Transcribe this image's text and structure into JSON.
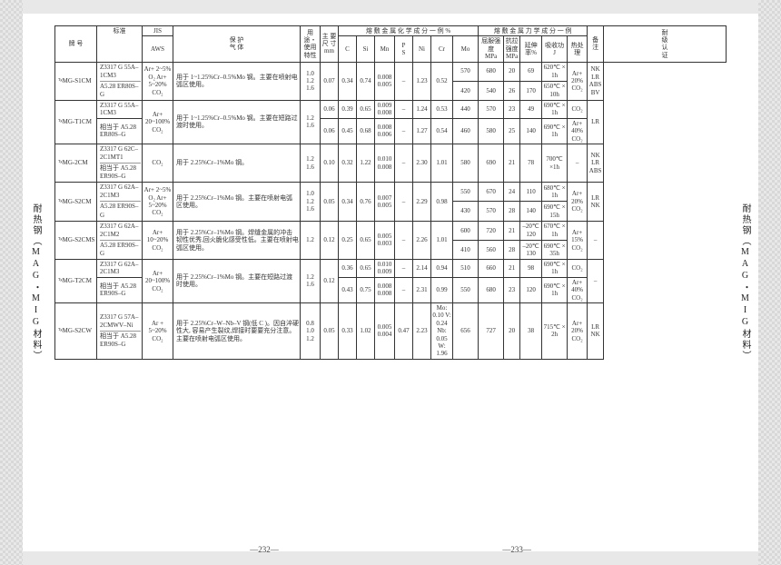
{
  "sideLabel": "耐热钢（MAG・MIG材料）",
  "footerLeft": "—232—",
  "footerRight": "—233—",
  "header": {
    "brand": "牌 号",
    "std": "标准",
    "jis": "JIS",
    "aws": "AWS",
    "shield": "保 护\n气 体",
    "usage": "用 途・使用特性",
    "dim": "主 要\n尺 寸\nmm",
    "chemGroup": "熔 敷 金 属 化 学 成 分 一 例  %",
    "mechGroup": "熔 敷 金 属 力 学 成 分 一 例",
    "c": "C",
    "si": "Si",
    "mn": "Mn",
    "ps": "P\nS",
    "ni": "Ni",
    "cr": "Cr",
    "mo": "Mo",
    "ys": "屈服强度\nMPa",
    "ts": "抗拉强度\nMPa",
    "el": "延伸\n率%",
    "im": "吸收功\nJ",
    "ht": "热处理",
    "note": "备 注",
    "ship": "耐\n级\n认\n证"
  },
  "rows": [
    {
      "brand": "ᵀᵍMG-S1CM",
      "jis": "Z3317\nG 55A–1CM3",
      "aws": "A5.28\nER80S–G",
      "shield": "Ar+\n2~5%\nO₂\nAr+\n5~20%\nCO₂",
      "usage": "用于 1~1.25%Cr–0.5%Mo 钢。主要在喷射电弧区使用。",
      "dim": "1.0\n1.2\n1.6",
      "chem": {
        "c": "0.07",
        "si": "0.34",
        "mn": "0.74",
        "ps": "0.008\n0.005",
        "ni": "–",
        "cr": "1.23",
        "mo": "0.52"
      },
      "mech": [
        {
          "ys": "570",
          "ts": "680",
          "el": "20",
          "im": "69",
          "ht": "620℃\n× 1h"
        },
        {
          "ys": "420",
          "ts": "540",
          "el": "26",
          "im": "170",
          "ht": "650℃\n× 10h"
        }
      ],
      "note": "Ar+\n20%\nCO₂",
      "ship": "NK\nLR\nABS\nBV"
    },
    {
      "brand": "ᵀᵍMG-T1CM",
      "jis1": "Z3317\nG 55A–1CM3",
      "aws1": "相当于\nA5.28\nER80S–G",
      "shield": "Ar+\n20~100%\nCO₂",
      "usage": "用于 1~1.25%Cr–0.5%Mo 钢。主要在短路过渡时使用。",
      "dim": "1.2\n1.6",
      "sub": [
        {
          "c": "0.06",
          "si": "0.39",
          "mn": "0.65",
          "ps": "0.009\n0.008",
          "ni": "–",
          "cr": "1.24",
          "mo": "0.53",
          "ys": "440",
          "ts": "570",
          "el": "23",
          "im": "49",
          "ht": "690℃\n× 1h",
          "note": "CO₂"
        },
        {
          "c": "0.06",
          "si": "0.45",
          "mn": "0.68",
          "ps": "0.008\n0.006",
          "ni": "–",
          "cr": "1.27",
          "mo": "0.54",
          "ys": "460",
          "ts": "580",
          "el": "25",
          "im": "140",
          "ht": "690℃\n× 1h",
          "note": "Ar+\n40%\nCO₂"
        }
      ],
      "ship": "LR"
    },
    {
      "brand": "ᵀᵍMG-2CM",
      "jis": "Z3317\nG 62C–2C1MT1",
      "aws": "相当于\nA5.28\nER90S–G",
      "shield": "CO₂",
      "usage": "用于 2.25%Cr–1%Mo 钢。",
      "dim": "1.2\n1.6",
      "chem": {
        "c": "0.10",
        "si": "0.32",
        "mn": "1.22",
        "ps": "0.010\n0.008",
        "ni": "–",
        "cr": "2.30",
        "mo": "1.01"
      },
      "mech": [
        {
          "ys": "580",
          "ts": "690",
          "el": "21",
          "im": "78",
          "ht": "700℃\n×1h"
        }
      ],
      "note": "–",
      "ship": "NK\nLR\nABS"
    },
    {
      "brand": "ᵀᵍMG-S2CM",
      "jis": "Z3317\nG 62A–2C1M3",
      "aws": "A5.28\nER90S–G",
      "shield": "Ar+\n2~5%\nO₂\nAr+\n5~20%\nCO₂",
      "usage": "用于 2.25%Cr–1%Mo 钢。主要在喷射电弧区使用。",
      "dim": "1.0\n1.2\n1.6",
      "chem": {
        "c": "0.05",
        "si": "0.34",
        "mn": "0.76",
        "ps": "0.007\n0.005",
        "ni": "–",
        "cr": "2.29",
        "mo": "0.98"
      },
      "mech": [
        {
          "ys": "550",
          "ts": "670",
          "el": "24",
          "im": "110",
          "ht": "680℃\n× 1h"
        },
        {
          "ys": "430",
          "ts": "570",
          "el": "28",
          "im": "140",
          "ht": "690℃\n× 15h"
        }
      ],
      "note": "Ar+\n20%\nCO₂",
      "ship": "LR\nNK"
    },
    {
      "brand": "ᵀᵍMG-S2CMS",
      "jis": "Z3317\nG 62A–2C1M2",
      "aws": "A5.28\nER90S–G",
      "shield": "Ar+\n10~20%\nCO₂",
      "usage": "用于 2.25%Cr–1%Mo 钢。焊缝金属的冲击韧性优秀,回火脆化感受性低。主要在喷射电弧区使用。",
      "dim": "1.2",
      "chem": {
        "c": "0.12",
        "si": "0.25",
        "mn": "0.65",
        "ps": "0.005\n0.003",
        "ni": "–",
        "cr": "2.26",
        "mo": "1.01"
      },
      "mech": [
        {
          "ys": "600",
          "ts": "720",
          "el": "21",
          "im": "–20℃\n120",
          "ht": "670℃\n× 1h"
        },
        {
          "ys": "410",
          "ts": "560",
          "el": "28",
          "im": "–20℃\n130",
          "ht": "690℃\n× 35h"
        }
      ],
      "note": "Ar+\n15%\nCO₂",
      "ship": "–"
    },
    {
      "brand": "ᵀᵍMG-T2CM",
      "jis1": "Z3317\nG 62A–2C1M3",
      "aws1": "相当于\nA5.28\nER90S–G",
      "shield": "Ar+\n20~100%\nCO₂",
      "usage": "用于 2.25%Cr–1%Mo 钢。主要在短路过渡时使用。",
      "dim": "1.2\n1.6",
      "cshare": "0.12",
      "sub": [
        {
          "si": "0.36",
          "mn": "0.65",
          "ps": "0.010\n0.009",
          "ni": "–",
          "cr": "2.14",
          "mo": "0.94",
          "ys": "510",
          "ts": "660",
          "el": "21",
          "im": "98",
          "ht": "690℃\n× 1h",
          "note": "CO₂"
        },
        {
          "si": "0.43",
          "mn": "0.75",
          "ps": "0.008\n0.008",
          "ni": "–",
          "cr": "2.31",
          "mo": "0.99",
          "ys": "550",
          "ts": "680",
          "el": "23",
          "im": "120",
          "ht": "690℃\n× 1h",
          "note": "Ar+\n40%\nCO₂"
        }
      ],
      "ship": "–"
    },
    {
      "brand": "ᵀᵍMG-S2CW",
      "jis": "Z3317\nG 57A–\n2CMWV–Ni",
      "aws": "相当于\nA5.28\nER90S–G",
      "shield": "Ar +\n5~20%\nCO₂",
      "usage": "用于 2.25%Cr–W–Nb–V 钢(低 C )。因自淬硬性大, 容易产生裂纹,焊接时要要充分注意。主要在喷射电弧区使用。",
      "dim": "0.8\n1.0\n1.2",
      "chem": {
        "c": "0.05",
        "si": "0.33",
        "mn": "1.02",
        "ps": "0.005\n0.004",
        "ni": "0.47",
        "cr": "2.23",
        "mo": "Mo:\n0.10\nV:\n0.24\nNb:\n0.05\nW:\n1.96"
      },
      "mech": [
        {
          "ys": "656",
          "ts": "727",
          "el": "20",
          "im": "38",
          "ht": "715℃\n× 2h"
        }
      ],
      "note": "Ar+\n20%\nCO₂",
      "ship": "LR\nNK"
    }
  ]
}
